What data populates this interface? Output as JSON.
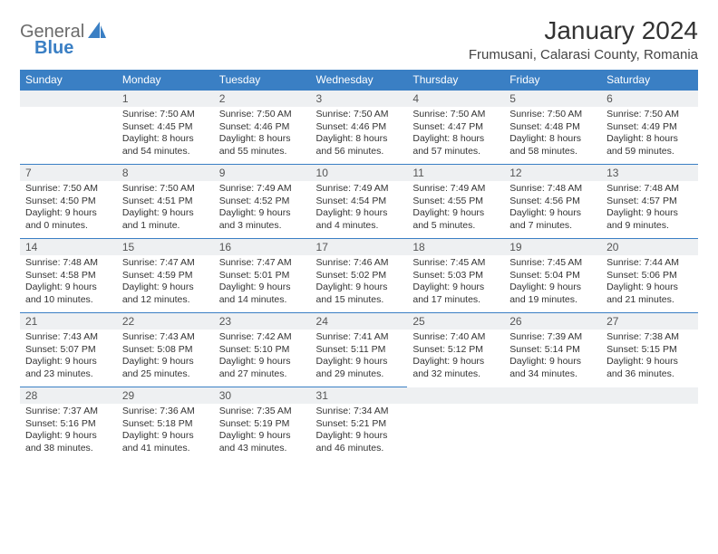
{
  "brand": {
    "name_part1": "General",
    "name_part2": "Blue"
  },
  "title": "January 2024",
  "location": "Frumusani, Calarasi County, Romania",
  "colors": {
    "header_bg": "#3a7fc4",
    "header_text": "#ffffff",
    "daynum_bg": "#eef0f2",
    "border": "#3a7fc4",
    "body_text": "#333333",
    "logo_gray": "#6b6b6b",
    "logo_blue": "#3a7fc4"
  },
  "day_headers": [
    "Sunday",
    "Monday",
    "Tuesday",
    "Wednesday",
    "Thursday",
    "Friday",
    "Saturday"
  ],
  "weeks": [
    [
      {
        "day": "",
        "lines": []
      },
      {
        "day": "1",
        "lines": [
          "Sunrise: 7:50 AM",
          "Sunset: 4:45 PM",
          "Daylight: 8 hours",
          "and 54 minutes."
        ]
      },
      {
        "day": "2",
        "lines": [
          "Sunrise: 7:50 AM",
          "Sunset: 4:46 PM",
          "Daylight: 8 hours",
          "and 55 minutes."
        ]
      },
      {
        "day": "3",
        "lines": [
          "Sunrise: 7:50 AM",
          "Sunset: 4:46 PM",
          "Daylight: 8 hours",
          "and 56 minutes."
        ]
      },
      {
        "day": "4",
        "lines": [
          "Sunrise: 7:50 AM",
          "Sunset: 4:47 PM",
          "Daylight: 8 hours",
          "and 57 minutes."
        ]
      },
      {
        "day": "5",
        "lines": [
          "Sunrise: 7:50 AM",
          "Sunset: 4:48 PM",
          "Daylight: 8 hours",
          "and 58 minutes."
        ]
      },
      {
        "day": "6",
        "lines": [
          "Sunrise: 7:50 AM",
          "Sunset: 4:49 PM",
          "Daylight: 8 hours",
          "and 59 minutes."
        ]
      }
    ],
    [
      {
        "day": "7",
        "lines": [
          "Sunrise: 7:50 AM",
          "Sunset: 4:50 PM",
          "Daylight: 9 hours",
          "and 0 minutes."
        ]
      },
      {
        "day": "8",
        "lines": [
          "Sunrise: 7:50 AM",
          "Sunset: 4:51 PM",
          "Daylight: 9 hours",
          "and 1 minute."
        ]
      },
      {
        "day": "9",
        "lines": [
          "Sunrise: 7:49 AM",
          "Sunset: 4:52 PM",
          "Daylight: 9 hours",
          "and 3 minutes."
        ]
      },
      {
        "day": "10",
        "lines": [
          "Sunrise: 7:49 AM",
          "Sunset: 4:54 PM",
          "Daylight: 9 hours",
          "and 4 minutes."
        ]
      },
      {
        "day": "11",
        "lines": [
          "Sunrise: 7:49 AM",
          "Sunset: 4:55 PM",
          "Daylight: 9 hours",
          "and 5 minutes."
        ]
      },
      {
        "day": "12",
        "lines": [
          "Sunrise: 7:48 AM",
          "Sunset: 4:56 PM",
          "Daylight: 9 hours",
          "and 7 minutes."
        ]
      },
      {
        "day": "13",
        "lines": [
          "Sunrise: 7:48 AM",
          "Sunset: 4:57 PM",
          "Daylight: 9 hours",
          "and 9 minutes."
        ]
      }
    ],
    [
      {
        "day": "14",
        "lines": [
          "Sunrise: 7:48 AM",
          "Sunset: 4:58 PM",
          "Daylight: 9 hours",
          "and 10 minutes."
        ]
      },
      {
        "day": "15",
        "lines": [
          "Sunrise: 7:47 AM",
          "Sunset: 4:59 PM",
          "Daylight: 9 hours",
          "and 12 minutes."
        ]
      },
      {
        "day": "16",
        "lines": [
          "Sunrise: 7:47 AM",
          "Sunset: 5:01 PM",
          "Daylight: 9 hours",
          "and 14 minutes."
        ]
      },
      {
        "day": "17",
        "lines": [
          "Sunrise: 7:46 AM",
          "Sunset: 5:02 PM",
          "Daylight: 9 hours",
          "and 15 minutes."
        ]
      },
      {
        "day": "18",
        "lines": [
          "Sunrise: 7:45 AM",
          "Sunset: 5:03 PM",
          "Daylight: 9 hours",
          "and 17 minutes."
        ]
      },
      {
        "day": "19",
        "lines": [
          "Sunrise: 7:45 AM",
          "Sunset: 5:04 PM",
          "Daylight: 9 hours",
          "and 19 minutes."
        ]
      },
      {
        "day": "20",
        "lines": [
          "Sunrise: 7:44 AM",
          "Sunset: 5:06 PM",
          "Daylight: 9 hours",
          "and 21 minutes."
        ]
      }
    ],
    [
      {
        "day": "21",
        "lines": [
          "Sunrise: 7:43 AM",
          "Sunset: 5:07 PM",
          "Daylight: 9 hours",
          "and 23 minutes."
        ]
      },
      {
        "day": "22",
        "lines": [
          "Sunrise: 7:43 AM",
          "Sunset: 5:08 PM",
          "Daylight: 9 hours",
          "and 25 minutes."
        ]
      },
      {
        "day": "23",
        "lines": [
          "Sunrise: 7:42 AM",
          "Sunset: 5:10 PM",
          "Daylight: 9 hours",
          "and 27 minutes."
        ]
      },
      {
        "day": "24",
        "lines": [
          "Sunrise: 7:41 AM",
          "Sunset: 5:11 PM",
          "Daylight: 9 hours",
          "and 29 minutes."
        ]
      },
      {
        "day": "25",
        "lines": [
          "Sunrise: 7:40 AM",
          "Sunset: 5:12 PM",
          "Daylight: 9 hours",
          "and 32 minutes."
        ]
      },
      {
        "day": "26",
        "lines": [
          "Sunrise: 7:39 AM",
          "Sunset: 5:14 PM",
          "Daylight: 9 hours",
          "and 34 minutes."
        ]
      },
      {
        "day": "27",
        "lines": [
          "Sunrise: 7:38 AM",
          "Sunset: 5:15 PM",
          "Daylight: 9 hours",
          "and 36 minutes."
        ]
      }
    ],
    [
      {
        "day": "28",
        "lines": [
          "Sunrise: 7:37 AM",
          "Sunset: 5:16 PM",
          "Daylight: 9 hours",
          "and 38 minutes."
        ]
      },
      {
        "day": "29",
        "lines": [
          "Sunrise: 7:36 AM",
          "Sunset: 5:18 PM",
          "Daylight: 9 hours",
          "and 41 minutes."
        ]
      },
      {
        "day": "30",
        "lines": [
          "Sunrise: 7:35 AM",
          "Sunset: 5:19 PM",
          "Daylight: 9 hours",
          "and 43 minutes."
        ]
      },
      {
        "day": "31",
        "lines": [
          "Sunrise: 7:34 AM",
          "Sunset: 5:21 PM",
          "Daylight: 9 hours",
          "and 46 minutes."
        ]
      },
      {
        "day": "",
        "lines": []
      },
      {
        "day": "",
        "lines": []
      },
      {
        "day": "",
        "lines": []
      }
    ]
  ]
}
